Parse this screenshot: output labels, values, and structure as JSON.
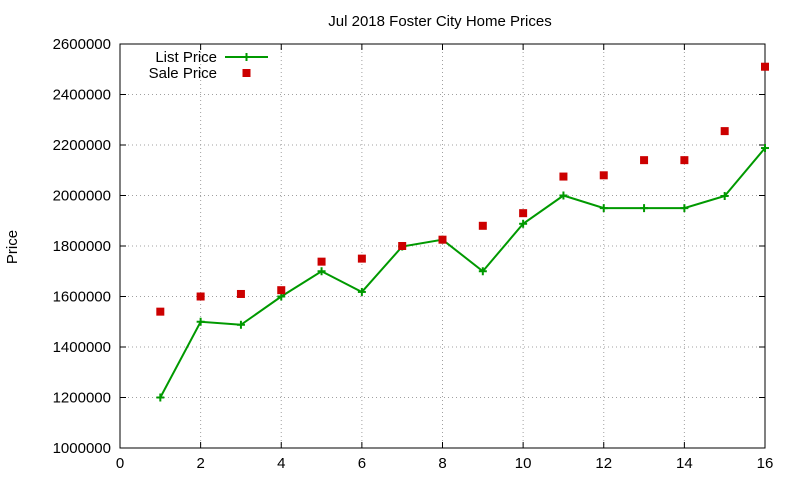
{
  "chart_data": {
    "type": "line",
    "title": "Jul 2018 Foster City Home Prices",
    "xlabel": "",
    "ylabel": "Price",
    "xlim": [
      0,
      16
    ],
    "ylim": [
      1000000,
      2600000
    ],
    "x_ticks": [
      0,
      2,
      4,
      6,
      8,
      10,
      12,
      14,
      16
    ],
    "y_ticks": [
      1000000,
      1200000,
      1400000,
      1600000,
      1800000,
      2000000,
      2200000,
      2400000,
      2600000
    ],
    "grid": true,
    "legend_position": "top-left",
    "series": [
      {
        "name": "List Price",
        "kind": "line-with-plus-markers",
        "color": "#009900",
        "x": [
          1,
          2,
          3,
          4,
          5,
          6,
          7,
          8,
          9,
          10,
          11,
          12,
          13,
          14,
          15,
          16
        ],
        "values": [
          1200000,
          1500000,
          1488000,
          1600000,
          1700000,
          1618000,
          1798000,
          1825000,
          1700000,
          1888000,
          2000000,
          1950000,
          1950000,
          1950000,
          1998000,
          2188000
        ]
      },
      {
        "name": "Sale Price",
        "kind": "square-markers",
        "color": "#cc0000",
        "x": [
          1,
          2,
          3,
          4,
          5,
          6,
          7,
          8,
          9,
          10,
          11,
          12,
          13,
          14,
          15,
          16
        ],
        "values": [
          1540000,
          1600000,
          1610000,
          1625000,
          1738000,
          1750000,
          1800000,
          1825000,
          1880000,
          1930000,
          2075000,
          2080000,
          2140000,
          2140000,
          2255000,
          2510000
        ]
      }
    ]
  }
}
